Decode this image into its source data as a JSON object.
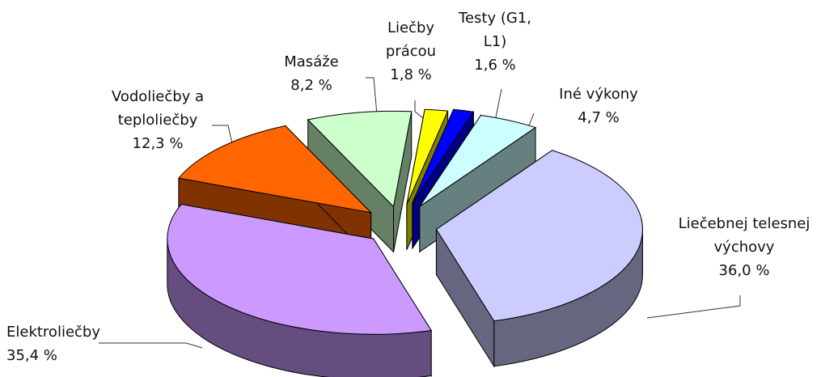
{
  "chart_data": {
    "type": "pie3d",
    "categories": [
      "Liečby prácou",
      "Testy (G1, L1)",
      "Iné výkony",
      "Liečebnej telesnej výchovy",
      "Elektroliečby",
      "Vodoliečby a teploliečby",
      "Masáže"
    ],
    "values": [
      1.8,
      1.6,
      4.7,
      36.0,
      35.4,
      12.3,
      8.2
    ],
    "value_labels": [
      "1,8 %",
      "1,6 %",
      "4,7 %",
      "36,0 %",
      "35,4 %",
      "12,3 %",
      "8,2 %"
    ],
    "colors": [
      "#ffff00",
      "#0000ff",
      "#ccffff",
      "#ccccff",
      "#cc99ff",
      "#ff6600",
      "#ccffcc"
    ]
  }
}
